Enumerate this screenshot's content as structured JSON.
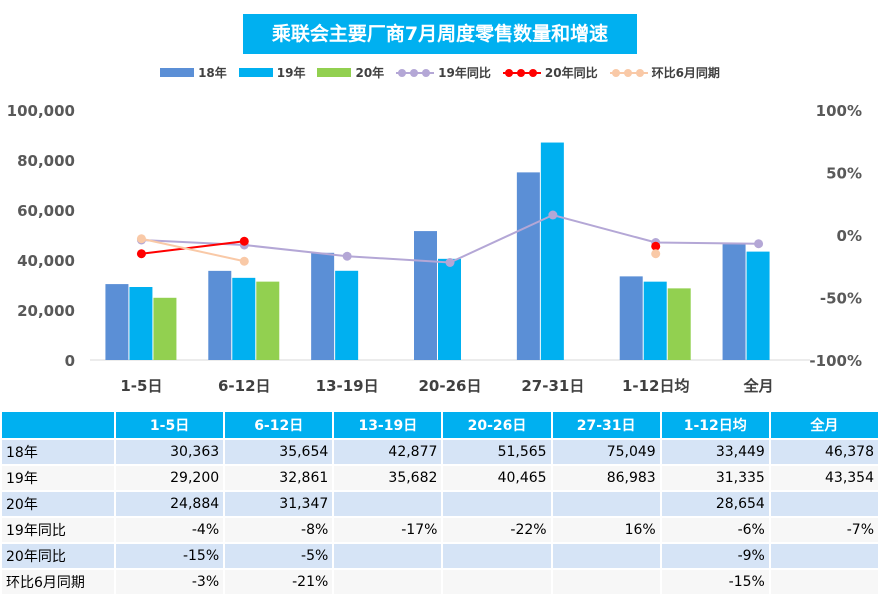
{
  "chart_data": {
    "type": "bar",
    "title": "乘联会主要厂商7月周度零售数量和增速",
    "categories": [
      "1-5日",
      "6-12日",
      "13-19日",
      "20-26日",
      "27-31日",
      "1-12日均",
      "全月"
    ],
    "series": [
      {
        "name": "18年",
        "kind": "bar",
        "color": "#5b8fd6",
        "values": [
          30363,
          35654,
          42877,
          51565,
          75049,
          33449,
          46378
        ]
      },
      {
        "name": "19年",
        "kind": "bar",
        "color": "#00b0f0",
        "values": [
          29200,
          32861,
          35682,
          40465,
          86983,
          31335,
          43354
        ]
      },
      {
        "name": "20年",
        "kind": "bar",
        "color": "#92d050",
        "values": [
          24884,
          31347,
          null,
          null,
          null,
          28654,
          null
        ]
      },
      {
        "name": "19年同比",
        "kind": "line",
        "color": "#b4a7d6",
        "values": [
          -0.04,
          -0.08,
          -0.17,
          -0.22,
          0.16,
          -0.06,
          -0.07
        ]
      },
      {
        "name": "20年同比",
        "kind": "line",
        "color": "#ff0000",
        "values": [
          -0.15,
          -0.05,
          null,
          null,
          null,
          -0.09,
          null
        ]
      },
      {
        "name": "环比6月同期",
        "kind": "line",
        "color": "#f9c9a7",
        "values": [
          -0.03,
          -0.21,
          null,
          null,
          null,
          -0.15,
          null
        ]
      }
    ],
    "y_left": {
      "min": 0,
      "max": 100000,
      "ticks": [
        0,
        20000,
        40000,
        60000,
        80000,
        100000
      ],
      "tick_labels": [
        "0",
        "20,000",
        "40,000",
        "60,000",
        "80,000",
        "100,000"
      ]
    },
    "y_right": {
      "min": -1.0,
      "max": 1.0,
      "ticks": [
        -1.0,
        -0.5,
        0,
        0.5,
        1.0
      ],
      "tick_labels": [
        "-100%",
        "-50%",
        "0%",
        "50%",
        "100%"
      ]
    },
    "legend_position": "top-center",
    "grid": false
  },
  "table": {
    "columns": [
      "1-5日",
      "6-12日",
      "13-19日",
      "20-26日",
      "27-31日",
      "1-12日均",
      "全月"
    ],
    "rows": [
      {
        "label": "18年",
        "cells": [
          "30,363",
          "35,654",
          "42,877",
          "51,565",
          "75,049",
          "33,449",
          "46,378"
        ]
      },
      {
        "label": "19年",
        "cells": [
          "29,200",
          "32,861",
          "35,682",
          "40,465",
          "86,983",
          "31,335",
          "43,354"
        ]
      },
      {
        "label": "20年",
        "cells": [
          "24,884",
          "31,347",
          "",
          "",
          "",
          "28,654",
          ""
        ]
      },
      {
        "label": "19年同比",
        "cells": [
          "-4%",
          "-8%",
          "-17%",
          "-22%",
          "16%",
          "-6%",
          "-7%"
        ]
      },
      {
        "label": "20年同比",
        "cells": [
          "-15%",
          "-5%",
          "",
          "",
          "",
          "-9%",
          ""
        ]
      },
      {
        "label": "环比6月同期",
        "cells": [
          "-3%",
          "-21%",
          "",
          "",
          "",
          "-15%",
          ""
        ]
      }
    ]
  }
}
